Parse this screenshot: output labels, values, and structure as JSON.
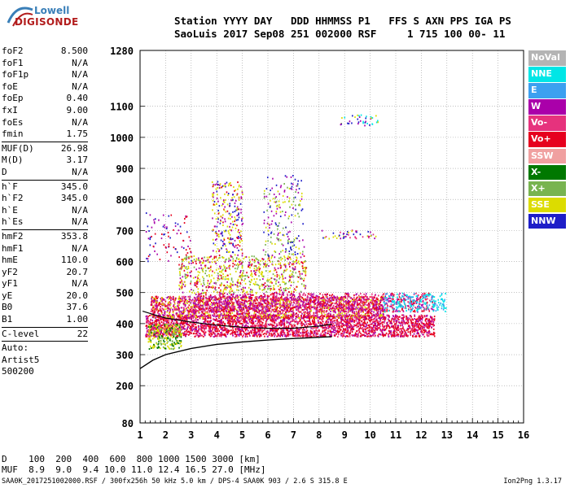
{
  "logo": {
    "line1": "Lowell",
    "line2": "DIGISONDE"
  },
  "header": {
    "line1": "Station YYYY DAY   DDD HHMMSS P1   FFS S AXN PPS IGA PS",
    "line2": "SaoLuis 2017 Sep08 251 002000 RSF     1 715 100 00- 11"
  },
  "params": [
    {
      "k": "foF2",
      "v": "8.500"
    },
    {
      "k": "foF1",
      "v": "N/A"
    },
    {
      "k": "foF1p",
      "v": "N/A"
    },
    {
      "k": "foE",
      "v": "N/A"
    },
    {
      "k": "foEp",
      "v": "0.40"
    },
    {
      "k": "fxI",
      "v": "9.00"
    },
    {
      "k": "foEs",
      "v": "N/A"
    },
    {
      "k": "fmin",
      "v": "1.75"
    },
    {
      "sep": true
    },
    {
      "k": "MUF(D)",
      "v": "26.98"
    },
    {
      "k": "M(D)",
      "v": "3.17"
    },
    {
      "k": "D",
      "v": "N/A"
    },
    {
      "sep": true
    },
    {
      "k": "h`F",
      "v": "345.0"
    },
    {
      "k": "h`F2",
      "v": "345.0"
    },
    {
      "k": "h`E",
      "v": "N/A"
    },
    {
      "k": "h`Es",
      "v": "N/A"
    },
    {
      "sep": true
    },
    {
      "k": "hmF2",
      "v": "353.8"
    },
    {
      "k": "hmF1",
      "v": "N/A"
    },
    {
      "k": "hmE",
      "v": "110.0"
    },
    {
      "k": "yF2",
      "v": "20.7"
    },
    {
      "k": "yF1",
      "v": "N/A"
    },
    {
      "k": "yE",
      "v": "20.0"
    },
    {
      "k": "B0",
      "v": "37.6"
    },
    {
      "k": "B1",
      "v": "1.00"
    },
    {
      "sep": true
    },
    {
      "k": "C-level",
      "v": "22"
    },
    {
      "sep": true
    },
    {
      "k": "Auto:",
      "v": ""
    },
    {
      "k": "Artist5",
      "v": ""
    },
    {
      "k": "500200",
      "v": ""
    }
  ],
  "footer": {
    "line1": "D    100  200  400  600  800 1000 1500 3000 [km]",
    "line2": "MUF  8.9  9.0  9.4 10.0 11.0 12.4 16.5 27.0 [MHz]",
    "filename": "SAA0K_2017251002000.RSF / 300fx256h 50 kHz 5.0 km / DPS-4 SAA0K 903 / 2.6 S 315.8 E",
    "version": "Ion2Png 1.3.17"
  },
  "legend": [
    {
      "label": "NoVal",
      "color": "#b4b4b4"
    },
    {
      "label": "NNE",
      "color": "#00e6e6"
    },
    {
      "label": "E",
      "color": "#3ca0f0"
    },
    {
      "label": "W",
      "color": "#aa00aa"
    },
    {
      "label": "Vo-",
      "color": "#e6327d"
    },
    {
      "label": "Vo+",
      "color": "#e6001e"
    },
    {
      "label": "SSW",
      "color": "#f0a0a0"
    },
    {
      "label": "X-",
      "color": "#007800"
    },
    {
      "label": "X+",
      "color": "#78b450"
    },
    {
      "label": "SSE",
      "color": "#dcdc00"
    },
    {
      "label": "NNW",
      "color": "#1e1ec8"
    }
  ],
  "chart_data": {
    "type": "scatter",
    "x_ticks": [
      1,
      2,
      3,
      4,
      5,
      6,
      7,
      8,
      9,
      10,
      11,
      12,
      13,
      14,
      15,
      16
    ],
    "y_ticks": [
      80,
      200,
      300,
      400,
      500,
      600,
      700,
      800,
      900,
      1000,
      1100,
      1280
    ],
    "xlim": [
      1,
      16
    ],
    "ylim": [
      80,
      1280
    ],
    "grid": true,
    "profile_curve": [
      [
        1.0,
        255
      ],
      [
        1.5,
        282
      ],
      [
        2,
        300
      ],
      [
        3,
        320
      ],
      [
        4,
        333
      ],
      [
        5,
        341
      ],
      [
        6,
        347
      ],
      [
        7,
        352
      ],
      [
        8,
        356
      ],
      [
        8.5,
        358
      ]
    ],
    "trace_curve": [
      [
        1.1,
        440
      ],
      [
        1.5,
        430
      ],
      [
        2,
        418
      ],
      [
        3,
        405
      ],
      [
        4,
        395
      ],
      [
        5,
        388
      ],
      [
        6,
        385
      ],
      [
        7,
        385
      ],
      [
        8,
        392
      ],
      [
        8.5,
        398
      ]
    ],
    "clusters": [
      {
        "x": [
          1.2,
          12.5
        ],
        "y": [
          360,
          430
        ],
        "colors": [
          "#e6001e",
          "#e6327d",
          "#aa00aa",
          "#e6001e"
        ],
        "density": 6
      },
      {
        "x": [
          1.4,
          10.5
        ],
        "y": [
          420,
          490
        ],
        "colors": [
          "#e6001e",
          "#e6327d",
          "#aa00aa",
          "#dcdc00"
        ],
        "density": 5
      },
      {
        "x": [
          3.0,
          12.5
        ],
        "y": [
          440,
          500
        ],
        "colors": [
          "#e6327d",
          "#aa00aa",
          "#e6001e"
        ],
        "density": 3
      },
      {
        "x": [
          10.5,
          13.0
        ],
        "y": [
          440,
          500
        ],
        "colors": [
          "#00e6e6",
          "#3ca0f0",
          "#00e6e6"
        ],
        "density": 2
      },
      {
        "x": [
          1.3,
          2.6
        ],
        "y": [
          320,
          400
        ],
        "colors": [
          "#dcdc00",
          "#78b450",
          "#dcdc00",
          "#007800"
        ],
        "density": 4
      },
      {
        "x": [
          2.5,
          7.5
        ],
        "y": [
          500,
          620
        ],
        "colors": [
          "#dcdc00",
          "#78b450",
          "#e6001e",
          "#aa00aa",
          "#dcdc00"
        ],
        "density": 2
      },
      {
        "x": [
          3.8,
          5.0
        ],
        "y": [
          620,
          860
        ],
        "colors": [
          "#dcdc00",
          "#aa00aa",
          "#1e1ec8",
          "#e6001e",
          "#dcdc00"
        ],
        "density": 1.5
      },
      {
        "x": [
          5.8,
          7.4
        ],
        "y": [
          620,
          880
        ],
        "colors": [
          "#dcdc00",
          "#aa00aa",
          "#1e1ec8",
          "#78b450"
        ],
        "density": 0.8
      },
      {
        "x": [
          8.8,
          10.3
        ],
        "y": [
          1040,
          1075
        ],
        "colors": [
          "#aa00aa",
          "#1e1ec8",
          "#00e6e6",
          "#dcdc00"
        ],
        "density": 1.2
      },
      {
        "x": [
          8.0,
          10.2
        ],
        "y": [
          675,
          705
        ],
        "colors": [
          "#aa00aa",
          "#dcdc00",
          "#e6327d",
          "#1e1ec8"
        ],
        "density": 1.2
      },
      {
        "x": [
          1.2,
          3.0
        ],
        "y": [
          600,
          760
        ],
        "colors": [
          "#aa00aa",
          "#e6001e",
          "#1e1ec8"
        ],
        "density": 0.5
      }
    ]
  }
}
